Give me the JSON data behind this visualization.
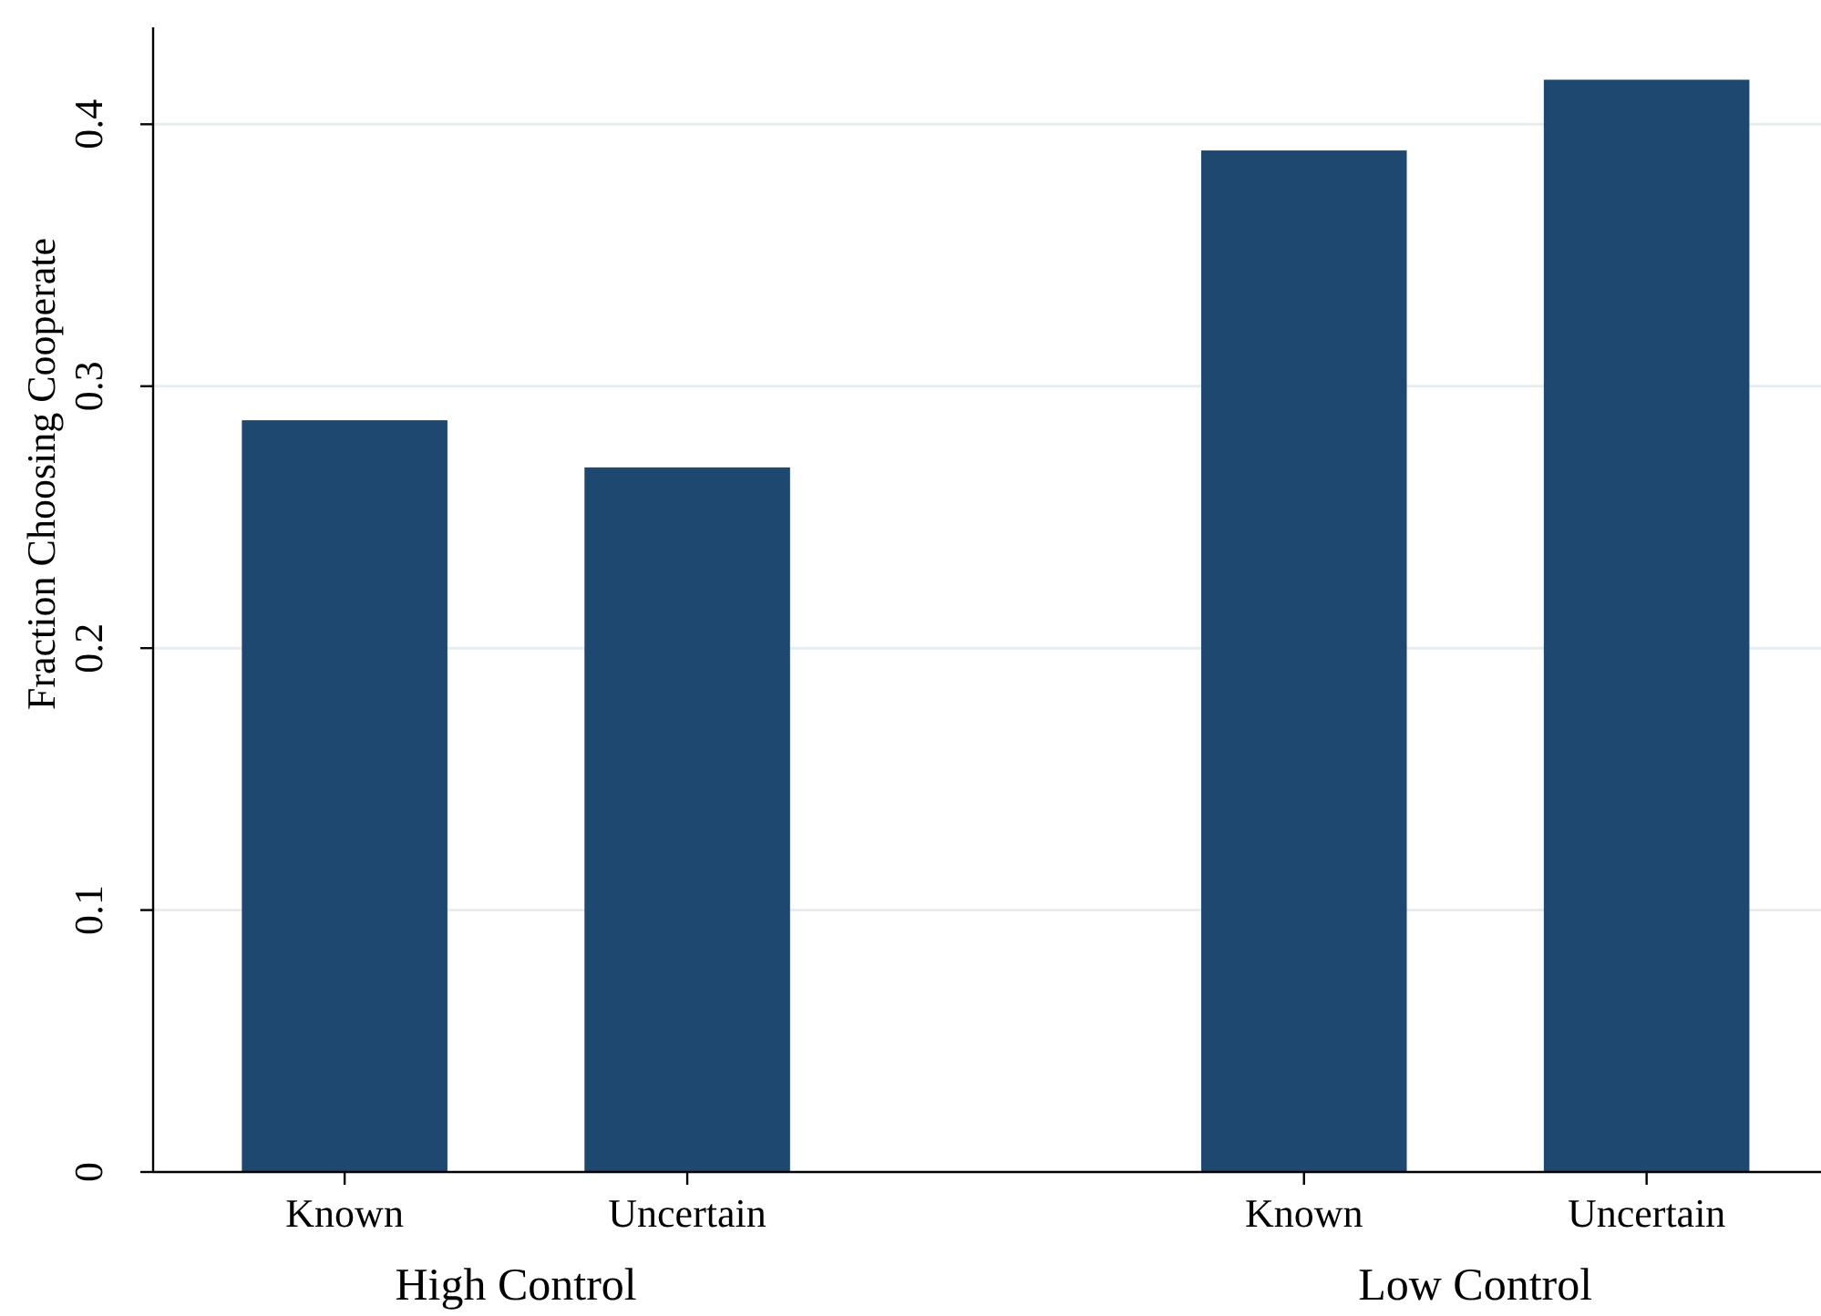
{
  "chart_data": {
    "type": "bar",
    "ylabel": "Fraction Choosing Cooperate",
    "categories": [
      "Known",
      "Uncertain",
      "Known",
      "Uncertain"
    ],
    "values": [
      0.287,
      0.269,
      0.39,
      0.417
    ],
    "color": "#1f4870",
    "ylim": [
      0,
      0.437
    ],
    "yticks": [
      0,
      0.1,
      0.2,
      0.3,
      0.4
    ],
    "grid": "y",
    "annotations": [
      "High Control",
      "Low Control"
    ]
  }
}
